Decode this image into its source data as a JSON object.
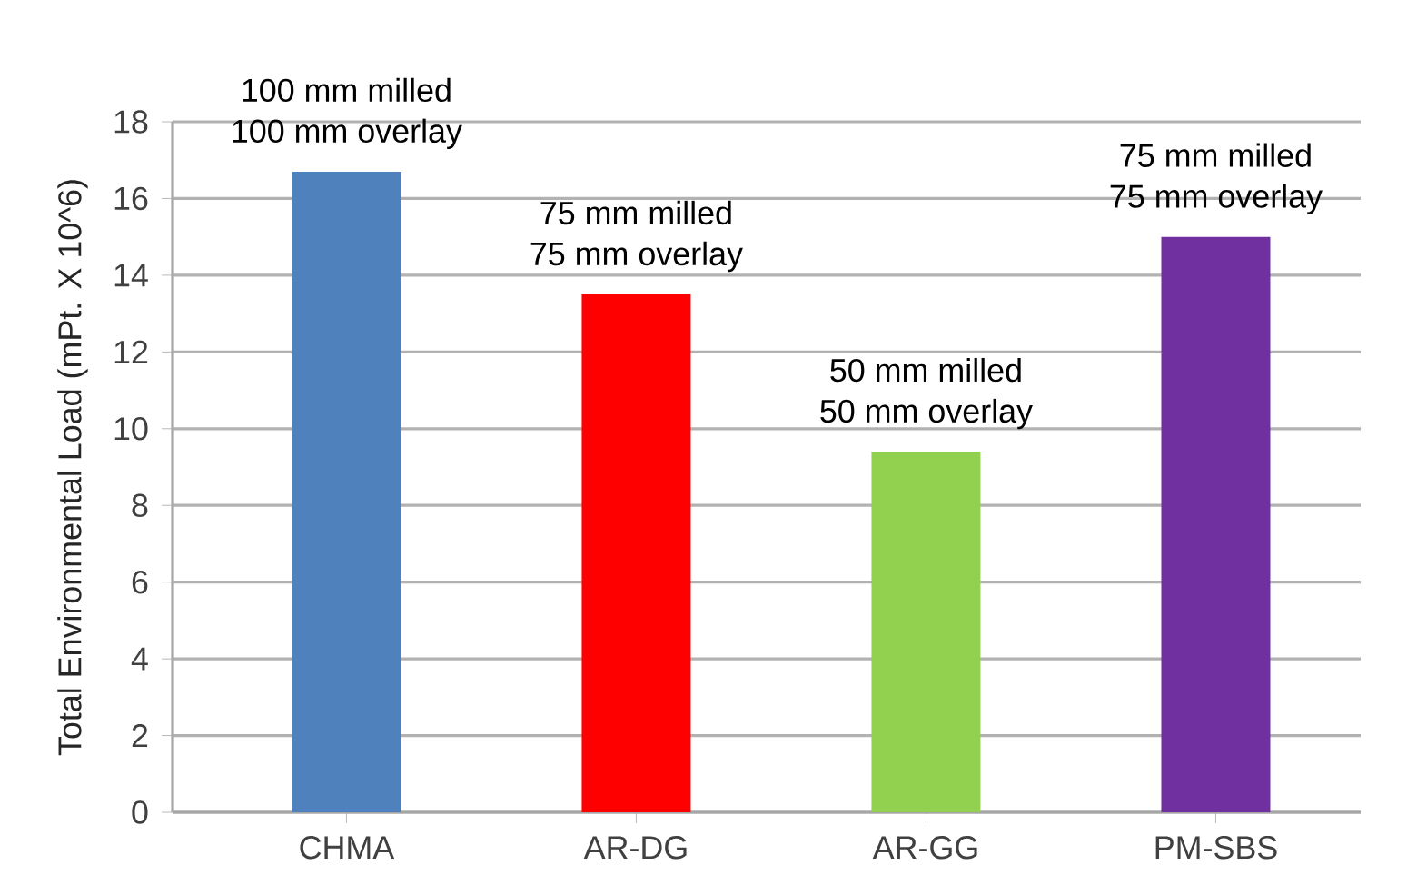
{
  "chart_data": {
    "type": "bar",
    "ylabel": "Total Environmental Load (mPt. X 10^6)",
    "categories": [
      "CHMA",
      "AR-DG",
      "AR-GG",
      "PM-SBS"
    ],
    "values": [
      16.7,
      13.5,
      9.4,
      15.0
    ],
    "colors": [
      "#4f81bd",
      "#ff0000",
      "#92d050",
      "#7030a0"
    ],
    "ylim": [
      0,
      18
    ],
    "yticks": [
      0,
      2,
      4,
      6,
      8,
      10,
      12,
      14,
      16,
      18
    ],
    "grid": "y",
    "annotations": [
      {
        "text": "100 mm milled",
        "x": "CHMA",
        "y": 16.7
      },
      {
        "text": "100 mm overlay",
        "x": "CHMA",
        "y": 16.7
      },
      {
        "text": "75 mm milled",
        "x": "AR-DG",
        "y": 13.5
      },
      {
        "text": "75 mm overlay",
        "x": "AR-DG",
        "y": 13.5
      },
      {
        "text": "50 mm milled",
        "x": "AR-GG",
        "y": 9.4
      },
      {
        "text": "50 mm overlay",
        "x": "AR-GG",
        "y": 9.4
      },
      {
        "text": "75 mm milled",
        "x": "PM-SBS",
        "y": 15.0
      },
      {
        "text": "75 mm overlay",
        "x": "PM-SBS",
        "y": 15.0
      }
    ]
  }
}
